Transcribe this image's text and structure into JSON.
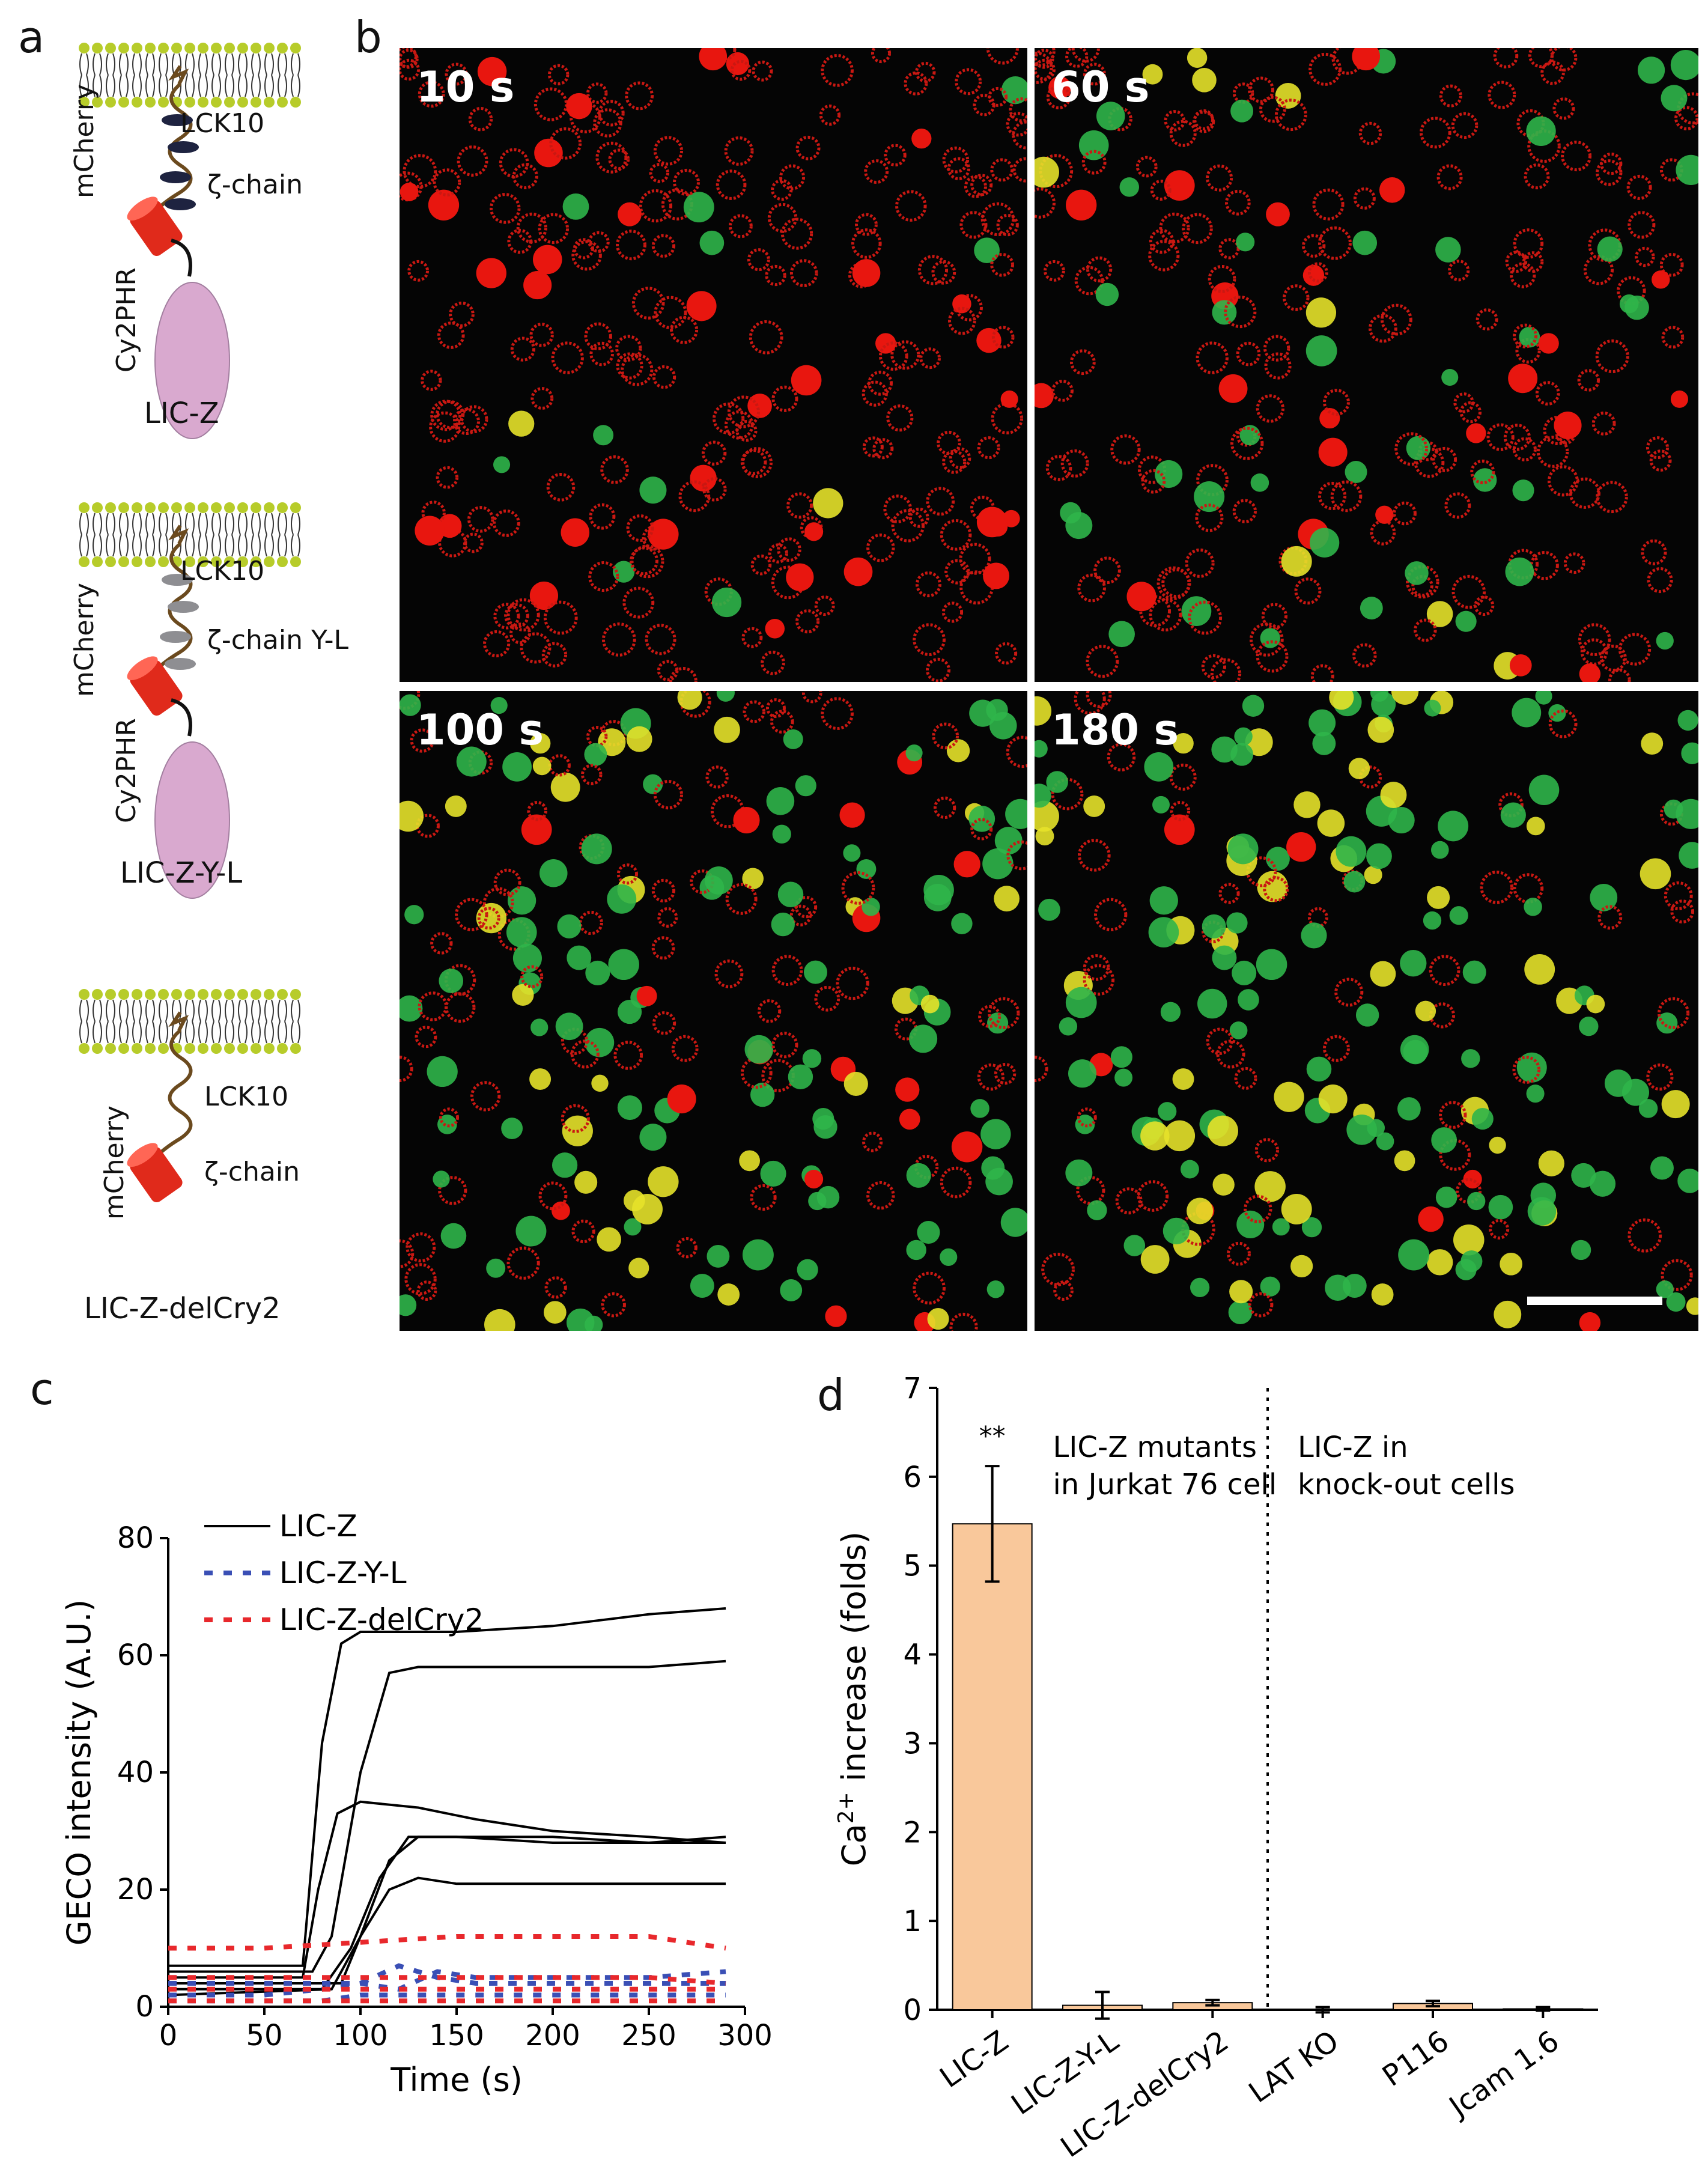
{
  "panel_letters": {
    "a": "a",
    "b": "b",
    "c": "c",
    "d": "d"
  },
  "panel_a": {
    "constructs": [
      {
        "name": "LIC-Z",
        "labels": {
          "lck": "LCK10",
          "zeta": "ζ-chain",
          "mcherry": "mCherry",
          "cry": "Cy2PHR"
        }
      },
      {
        "name": "LIC-Z-Y-L",
        "labels": {
          "lck": "LCK10",
          "zeta": "ζ-chain Y-L",
          "mcherry": "mCherry",
          "cry": "Cy2PHR"
        }
      },
      {
        "name": "LIC-Z-delCry2",
        "labels": {
          "lck": "LCK10",
          "zeta": "ζ-chain",
          "mcherry": "mCherry"
        }
      }
    ],
    "colors": {
      "membrane_head": "#b7cc2a",
      "linker": "#6b4a1e",
      "mcherry": "#e02a1b",
      "cry2": "#d9a9cf",
      "itam_dark": "#1e2340",
      "itam_grey": "#8e8e92"
    }
  },
  "panel_b": {
    "frames": [
      {
        "time": "10 s",
        "green_fraction": 0.08
      },
      {
        "time": "60 s",
        "green_fraction": 0.22
      },
      {
        "time": "100 s",
        "green_fraction": 0.6
      },
      {
        "time": "180 s",
        "green_fraction": 0.78
      }
    ]
  },
  "panel_c": {
    "chart_data": {
      "type": "line",
      "xlabel": "Time (s)",
      "ylabel": "GECO intensity (A.U.)",
      "xlim": [
        0,
        300
      ],
      "ylim": [
        0,
        80
      ],
      "xticks": [
        0,
        50,
        100,
        150,
        200,
        250,
        300
      ],
      "yticks": [
        0,
        20,
        40,
        60,
        80
      ],
      "legend_position": "top-left",
      "legend": [
        "LIC-Z",
        "LIC-Z-Y-L",
        "LIC-Z-delCry2"
      ],
      "series_colors": {
        "LIC-Z": "#000000",
        "LIC-Z-Y-L": "#3a4fb5",
        "LIC-Z-delCry2": "#e8282c"
      },
      "series": [
        {
          "name": "LIC-Z",
          "x": [
            0,
            70,
            80,
            90,
            100,
            120,
            150,
            200,
            250,
            290
          ],
          "y": [
            7,
            7,
            45,
            62,
            64,
            64,
            64,
            65,
            67,
            68
          ]
        },
        {
          "name": "LIC-Z",
          "x": [
            0,
            75,
            85,
            100,
            115,
            130,
            150,
            200,
            250,
            290
          ],
          "y": [
            6,
            6,
            12,
            40,
            57,
            58,
            58,
            58,
            58,
            59
          ]
        },
        {
          "name": "LIC-Z",
          "x": [
            0,
            70,
            78,
            88,
            100,
            130,
            160,
            200,
            250,
            290
          ],
          "y": [
            5,
            5,
            20,
            33,
            35,
            34,
            32,
            30,
            29,
            28
          ]
        },
        {
          "name": "LIC-Z",
          "x": [
            0,
            90,
            100,
            115,
            130,
            150,
            200,
            250,
            290
          ],
          "y": [
            4,
            4,
            12,
            25,
            29,
            29,
            29,
            28,
            28
          ]
        },
        {
          "name": "LIC-Z",
          "x": [
            0,
            80,
            95,
            110,
            125,
            150,
            200,
            250,
            290
          ],
          "y": [
            3,
            3,
            10,
            22,
            29,
            29,
            28,
            28,
            29
          ]
        },
        {
          "name": "LIC-Z",
          "x": [
            0,
            85,
            100,
            115,
            130,
            150,
            200,
            250,
            290
          ],
          "y": [
            2,
            3,
            12,
            20,
            22,
            21,
            21,
            21,
            21
          ]
        },
        {
          "name": "LIC-Z-Y-L",
          "x": [
            0,
            50,
            80,
            100,
            120,
            140,
            160,
            200,
            250,
            290
          ],
          "y": [
            4,
            4,
            4,
            4,
            7,
            5,
            4,
            4,
            4,
            4
          ]
        },
        {
          "name": "LIC-Z-Y-L",
          "x": [
            0,
            50,
            80,
            100,
            120,
            140,
            160,
            200,
            250,
            290
          ],
          "y": [
            2,
            2,
            3,
            4,
            3,
            6,
            5,
            5,
            5,
            6
          ]
        },
        {
          "name": "LIC-Z-Y-L",
          "x": [
            0,
            50,
            80,
            100,
            120,
            160,
            200,
            250,
            290
          ],
          "y": [
            1,
            1,
            1,
            2,
            2,
            2,
            2,
            2,
            2
          ]
        },
        {
          "name": "LIC-Z-delCry2",
          "x": [
            0,
            50,
            100,
            150,
            200,
            250,
            290
          ],
          "y": [
            10,
            10,
            11,
            12,
            12,
            12,
            10
          ]
        },
        {
          "name": "LIC-Z-delCry2",
          "x": [
            0,
            50,
            100,
            150,
            200,
            250,
            290
          ],
          "y": [
            5,
            5,
            5,
            5,
            5,
            5,
            4
          ]
        },
        {
          "name": "LIC-Z-delCry2",
          "x": [
            0,
            50,
            100,
            150,
            200,
            250,
            290
          ],
          "y": [
            3,
            3,
            3,
            3,
            3,
            3,
            3
          ]
        },
        {
          "name": "LIC-Z-delCry2",
          "x": [
            0,
            50,
            100,
            150,
            200,
            250,
            290
          ],
          "y": [
            1,
            1,
            1,
            1,
            1,
            1,
            1
          ]
        }
      ]
    }
  },
  "panel_d": {
    "chart_data": {
      "type": "bar",
      "ylabel": "Ca2+ increase (folds)",
      "ylabel_base": "Ca",
      "ylabel_sup": "2+",
      "ylabel_rest": " increase (folds)",
      "ylim": [
        0,
        7
      ],
      "yticks": [
        0,
        1,
        2,
        3,
        4,
        5,
        6,
        7
      ],
      "categories": [
        "LIC-Z",
        "LIC-Z-Y-L",
        "LIC-Z-delCry2",
        "LAT KO",
        "P116",
        "Jcam 1.6"
      ],
      "values": [
        5.47,
        0.05,
        0.08,
        0.0,
        0.07,
        0.01
      ],
      "errors": [
        0.65,
        0.15,
        0.03,
        0.03,
        0.03,
        0.02
      ],
      "bar_color": "#f9c89b",
      "significance": "**",
      "annotations": [
        {
          "line1": "LIC-Z mutants",
          "line2": "in Jurkat 76 cell"
        },
        {
          "line1": "LIC-Z in",
          "line2": "knock-out cells"
        }
      ]
    }
  }
}
